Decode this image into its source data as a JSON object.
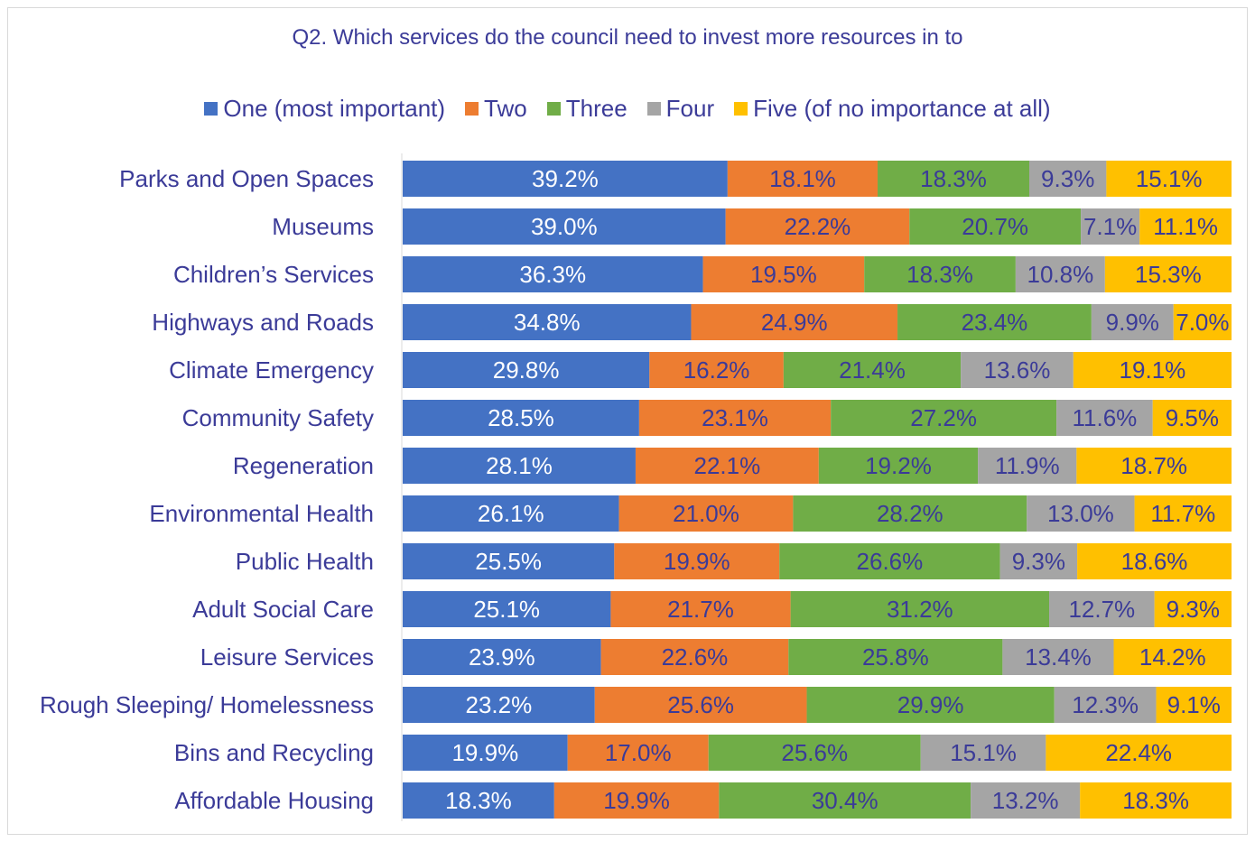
{
  "chart_data": {
    "type": "stacked-bar-horizontal",
    "title": "Q2. Which services do the council need to invest more resources in to",
    "categories": [
      "Parks and Open Spaces",
      "Museums",
      "Children’s Services",
      "Highways and Roads",
      "Climate Emergency",
      "Community Safety",
      "Regeneration",
      "Environmental Health",
      "Public Health",
      "Adult Social Care",
      "Leisure Services",
      "Rough Sleeping/ Homelessness",
      "Bins and Recycling",
      "Affordable Housing"
    ],
    "series": [
      {
        "name": "One (most important)",
        "color": "#4472c4",
        "values": [
          39.2,
          39.0,
          36.3,
          34.8,
          29.8,
          28.5,
          28.1,
          26.1,
          25.5,
          25.1,
          23.9,
          23.2,
          19.9,
          18.3
        ],
        "value_labels": [
          "39.2%",
          "39.0%",
          "36.3%",
          "34.8%",
          "29.8%",
          "28.5%",
          "28.1%",
          "26.1%",
          "25.5%",
          "25.1%",
          "23.9%",
          "23.2%",
          "19.9%",
          "18.3%"
        ]
      },
      {
        "name": "Two",
        "color": "#ed7d31",
        "values": [
          18.1,
          22.2,
          19.5,
          24.9,
          16.2,
          23.1,
          22.1,
          21.0,
          19.9,
          21.7,
          22.6,
          25.6,
          17.0,
          19.9
        ],
        "value_labels": [
          "18.1%",
          "22.2%",
          "19.5%",
          "24.9%",
          "16.2%",
          "23.1%",
          "22.1%",
          "21.0%",
          "19.9%",
          "21.7%",
          "22.6%",
          "25.6%",
          "17.0%",
          "19.9%"
        ]
      },
      {
        "name": "Three",
        "color": "#70ad47",
        "values": [
          18.3,
          20.7,
          18.3,
          23.4,
          21.4,
          27.2,
          19.2,
          28.2,
          26.6,
          31.2,
          25.8,
          29.9,
          25.6,
          30.4
        ],
        "value_labels": [
          "18.3%",
          "20.7%",
          "18.3%",
          "23.4%",
          "21.4%",
          "27.2%",
          "19.2%",
          "28.2%",
          "26.6%",
          "31.2%",
          "25.8%",
          "29.9%",
          "25.6%",
          "30.4%"
        ]
      },
      {
        "name": "Four",
        "color": "#a5a5a5",
        "values": [
          9.3,
          7.1,
          10.8,
          9.9,
          13.6,
          11.6,
          11.9,
          13.0,
          9.3,
          12.7,
          13.4,
          12.3,
          15.1,
          13.2
        ],
        "value_labels": [
          "9.3%",
          "7.1%",
          "10.8%",
          "9.9%",
          "13.6%",
          "11.6%",
          "11.9%",
          "13.0%",
          "9.3%",
          "12.7%",
          "13.4%",
          "12.3%",
          "15.1%",
          "13.2%"
        ]
      },
      {
        "name": "Five (of no importance at all)",
        "color": "#ffc000",
        "values": [
          15.1,
          11.1,
          15.3,
          7.0,
          19.1,
          9.5,
          18.7,
          11.7,
          18.6,
          9.3,
          14.2,
          9.1,
          22.4,
          18.3
        ],
        "value_labels": [
          "15.1%",
          "11.1%",
          "15.3%",
          "7.0%",
          "19.1%",
          "9.5%",
          "18.7%",
          "11.7%",
          "18.6%",
          "9.3%",
          "14.2%",
          "9.1%",
          "22.4%",
          "18.3%"
        ]
      }
    ]
  }
}
